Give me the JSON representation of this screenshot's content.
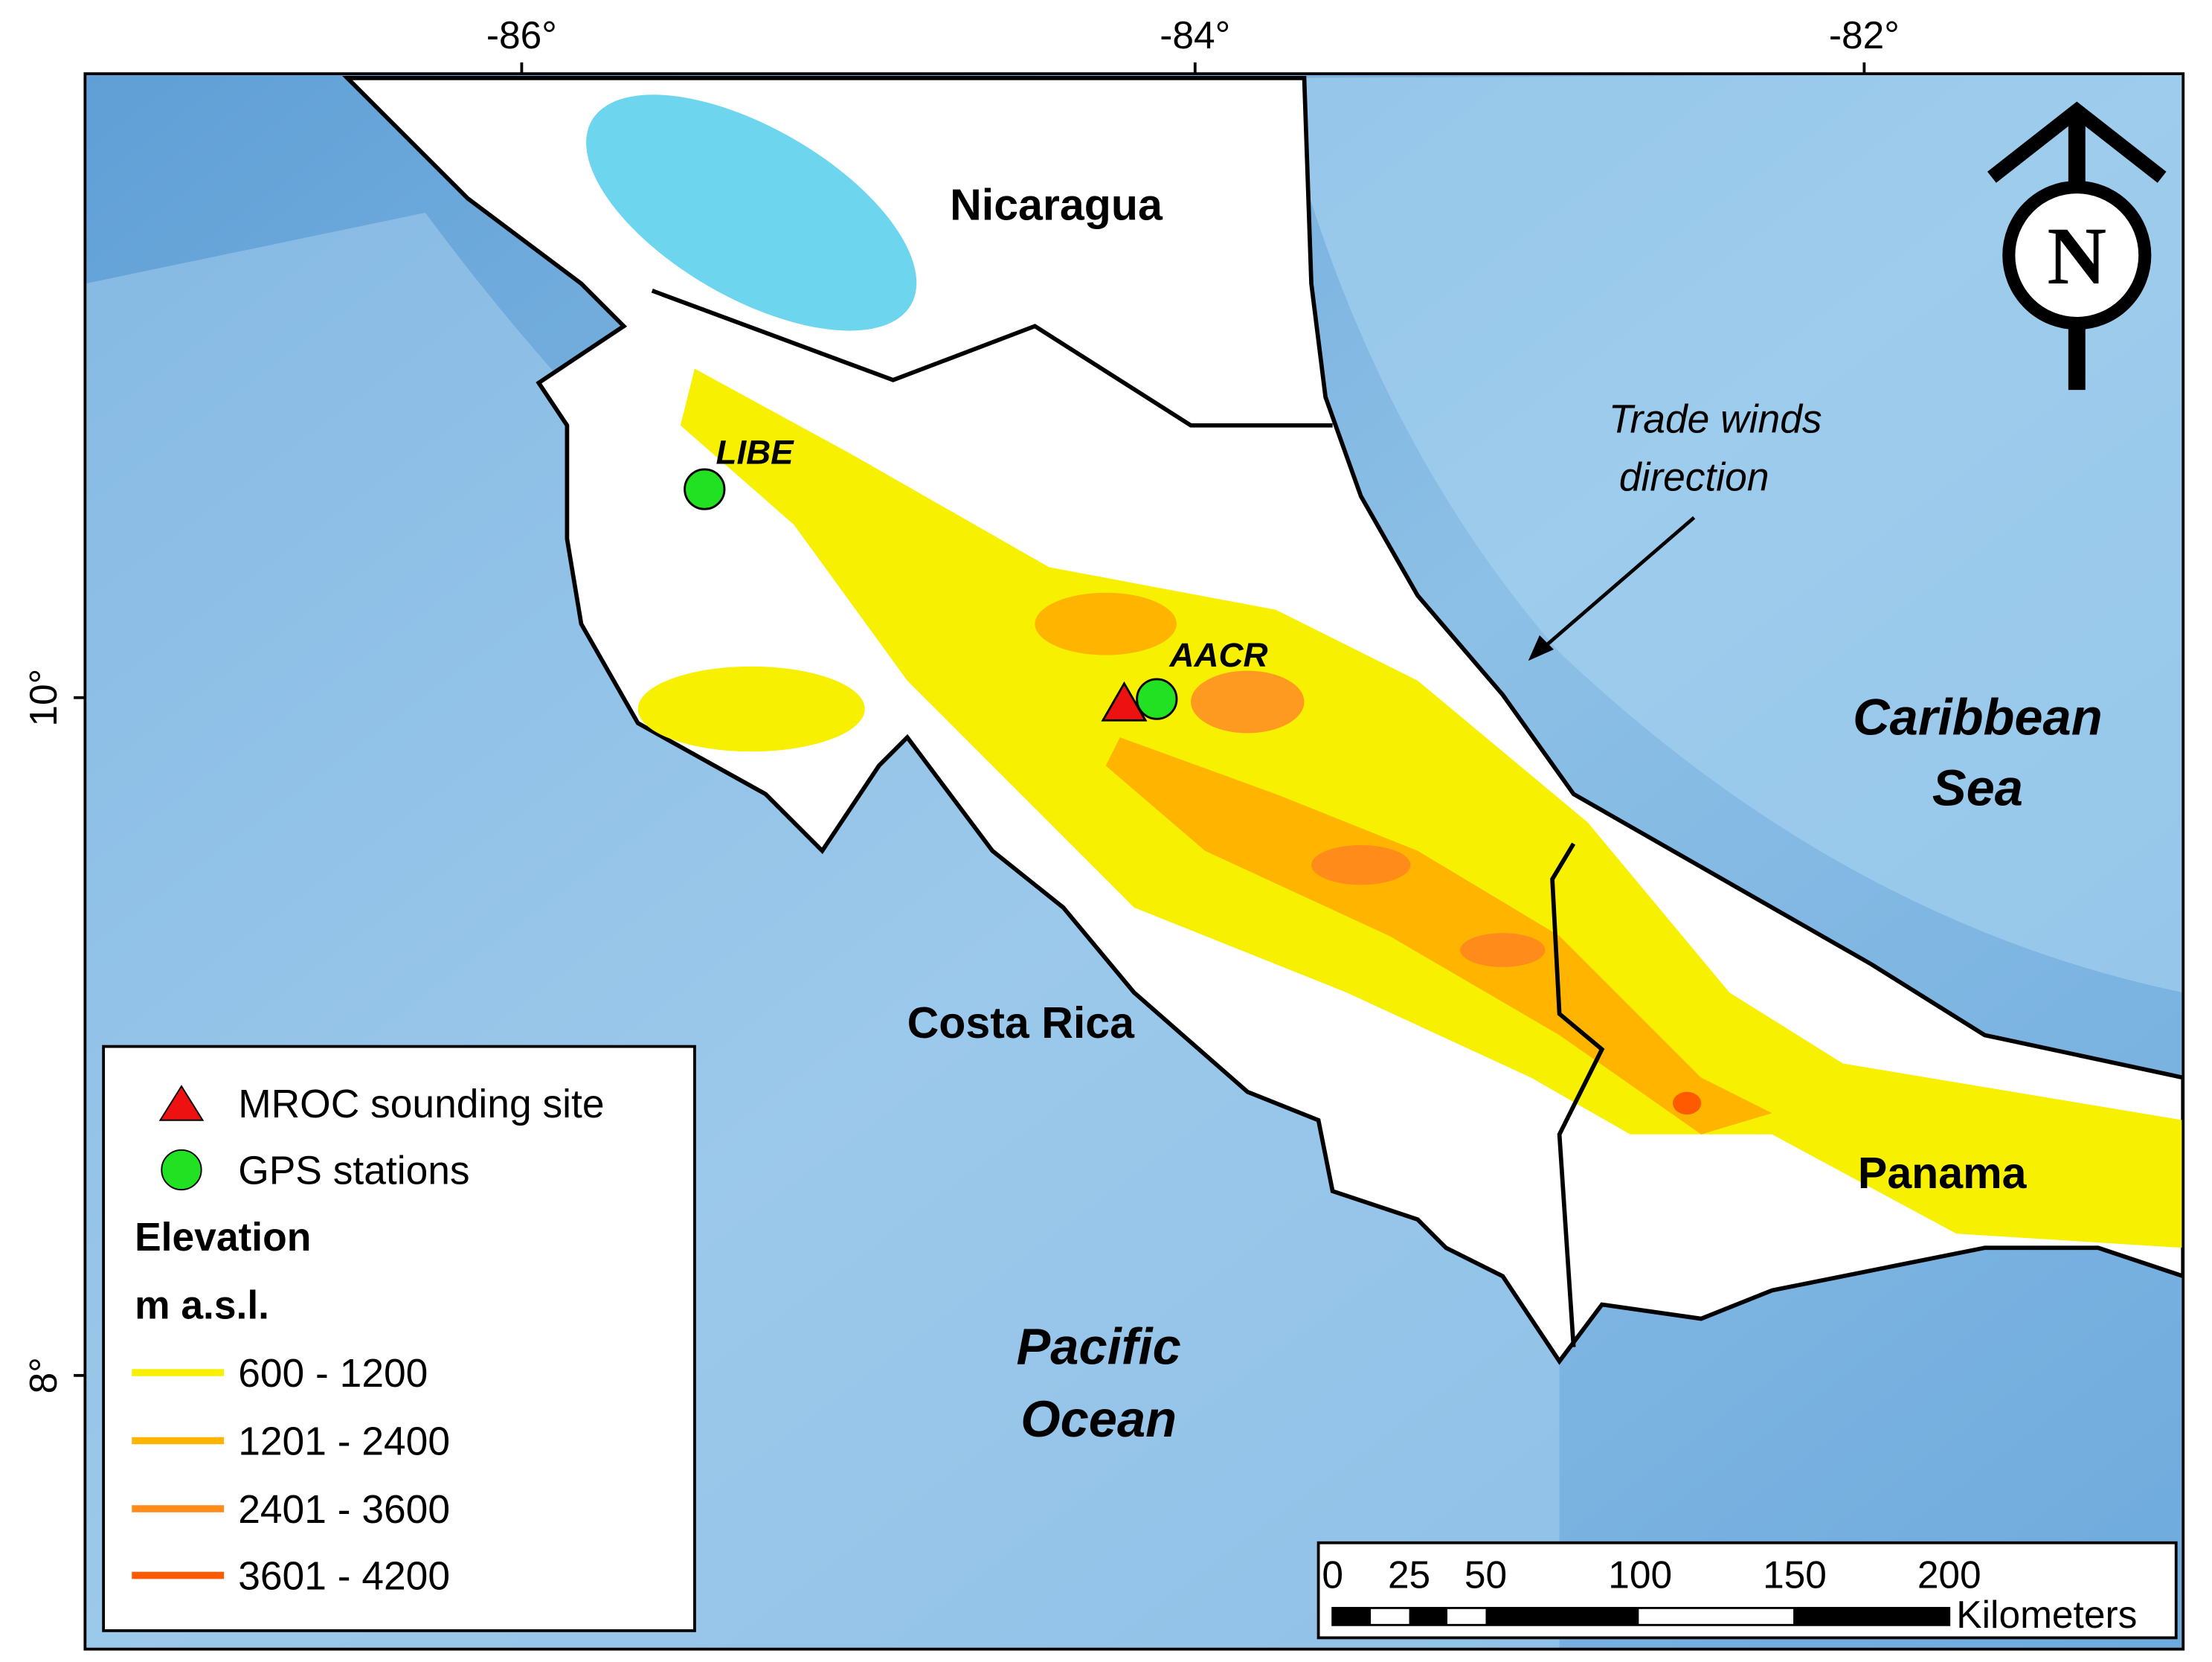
{
  "axes": {
    "x_ticks": [
      "-86°",
      "-84°",
      "-82°"
    ],
    "y_ticks": [
      "10°",
      "8°"
    ]
  },
  "places": {
    "nicaragua": "Nicaragua",
    "costa_rica": "Costa Rica",
    "panama": "Panama",
    "caribbean": [
      "Caribbean",
      "Sea"
    ],
    "pacific": [
      "Pacific",
      "Ocean"
    ]
  },
  "annotation": [
    "Trade winds",
    "direction"
  ],
  "north": "N",
  "stations": [
    "LIBE",
    "AACR"
  ],
  "legend": {
    "items": [
      "MROC sounding site",
      "GPS stations"
    ],
    "heading": [
      "Elevation",
      "m a.s.l."
    ],
    "elevation": [
      "600 - 1200",
      "1201 - 2400",
      "2401 - 3600",
      "3601 - 4200"
    ]
  },
  "scale_bar": {
    "ticks": [
      "0",
      "25",
      "50",
      "100",
      "150",
      "200"
    ],
    "unit": "Kilometers"
  }
}
